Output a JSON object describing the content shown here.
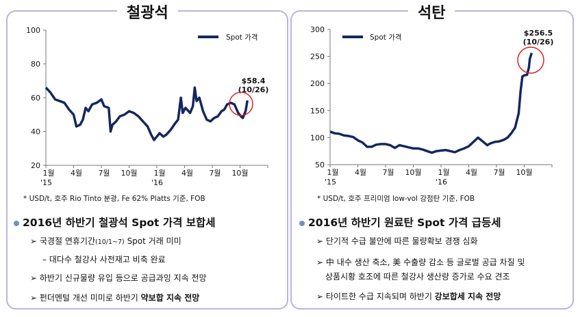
{
  "chart_data": [
    {
      "type": "line",
      "title": "철광석",
      "legend": "Spot 가격",
      "legend_placement": "top-right",
      "ylim": [
        20,
        100
      ],
      "yticks": [
        20,
        40,
        60,
        80,
        100
      ],
      "xlim": [
        0,
        24
      ],
      "x_unit": "months since Jan 2015",
      "xticks": [
        {
          "x": 0,
          "label": "1월",
          "year": "'15"
        },
        {
          "x": 3,
          "label": "4월"
        },
        {
          "x": 6,
          "label": "7월"
        },
        {
          "x": 9,
          "label": "10월"
        },
        {
          "x": 12,
          "label": "1월",
          "year": "'16"
        },
        {
          "x": 15,
          "label": "4월"
        },
        {
          "x": 18,
          "label": "7월"
        },
        {
          "x": 21,
          "label": "10월"
        }
      ],
      "annotation": {
        "value": "$58.4",
        "date": "(10/26)"
      },
      "note": "* USD/t, 호주 Rio Tinto 분광, Fe 62% Platts 기준, FOB",
      "series": [
        [
          0,
          66
        ],
        [
          0.5,
          63
        ],
        [
          1,
          59
        ],
        [
          1.5,
          58
        ],
        [
          2,
          57
        ],
        [
          2.5,
          53
        ],
        [
          3,
          50
        ],
        [
          3.3,
          43
        ],
        [
          3.7,
          44
        ],
        [
          4,
          47
        ],
        [
          4.3,
          54
        ],
        [
          4.6,
          52
        ],
        [
          5,
          56
        ],
        [
          5.5,
          57
        ],
        [
          6,
          59
        ],
        [
          6.3,
          55
        ],
        [
          6.8,
          54
        ],
        [
          7,
          40
        ],
        [
          7.2,
          44
        ],
        [
          7.6,
          46
        ],
        [
          8,
          49
        ],
        [
          8.5,
          50
        ],
        [
          9,
          52
        ],
        [
          9.5,
          51
        ],
        [
          10,
          49
        ],
        [
          10.5,
          46
        ],
        [
          11,
          43
        ],
        [
          11.4,
          38
        ],
        [
          11.7,
          35
        ],
        [
          12,
          37
        ],
        [
          12.3,
          39
        ],
        [
          12.7,
          37
        ],
        [
          13,
          38
        ],
        [
          13.5,
          41
        ],
        [
          14,
          45
        ],
        [
          14.3,
          47
        ],
        [
          14.6,
          60
        ],
        [
          14.8,
          51
        ],
        [
          15.1,
          54
        ],
        [
          15.6,
          51
        ],
        [
          15.9,
          55
        ],
        [
          16.1,
          66
        ],
        [
          16.3,
          58
        ],
        [
          16.6,
          60
        ],
        [
          17,
          52
        ],
        [
          17.4,
          47
        ],
        [
          17.8,
          46
        ],
        [
          18.2,
          48
        ],
        [
          18.6,
          49
        ],
        [
          19,
          52
        ],
        [
          19.3,
          53
        ],
        [
          19.6,
          56
        ],
        [
          20,
          57
        ],
        [
          20.4,
          56
        ],
        [
          20.8,
          51
        ],
        [
          21.1,
          49
        ],
        [
          21.3,
          48
        ],
        [
          21.6,
          52
        ],
        [
          21.8,
          58.4
        ]
      ]
    },
    {
      "type": "line",
      "title": "석탄",
      "legend": "Spot 가격",
      "legend_placement": "top-left",
      "ylim": [
        50,
        300
      ],
      "yticks": [
        50,
        100,
        150,
        200,
        250,
        300
      ],
      "xlim": [
        0,
        24
      ],
      "x_unit": "months since Jan 2015",
      "xticks": [
        {
          "x": 0,
          "label": "1월",
          "year": "'15"
        },
        {
          "x": 3,
          "label": "4월"
        },
        {
          "x": 6,
          "label": "7월"
        },
        {
          "x": 9,
          "label": "10월"
        },
        {
          "x": 12,
          "label": "1월",
          "year": "'16"
        },
        {
          "x": 15,
          "label": "4월"
        },
        {
          "x": 18,
          "label": "7월"
        },
        {
          "x": 21,
          "label": "10월"
        }
      ],
      "annotation": {
        "value": "$256.5",
        "date": "(10/26)"
      },
      "note": "* USD/t, 호주 프리미엄 low-vol 강점탄 기준, FOB",
      "series": [
        [
          0,
          111
        ],
        [
          0.5,
          108
        ],
        [
          1,
          107
        ],
        [
          1.5,
          104
        ],
        [
          2,
          103
        ],
        [
          2.5,
          101
        ],
        [
          3,
          95
        ],
        [
          3.5,
          91
        ],
        [
          4,
          83
        ],
        [
          4.5,
          83
        ],
        [
          5,
          87
        ],
        [
          5.5,
          88
        ],
        [
          6,
          88
        ],
        [
          6.5,
          86
        ],
        [
          7,
          81
        ],
        [
          7.5,
          86
        ],
        [
          8,
          84
        ],
        [
          8.5,
          82
        ],
        [
          9,
          80
        ],
        [
          9.5,
          80
        ],
        [
          10,
          78
        ],
        [
          10.5,
          75
        ],
        [
          11,
          72
        ],
        [
          11.5,
          75
        ],
        [
          12,
          76
        ],
        [
          12.5,
          77
        ],
        [
          13,
          75
        ],
        [
          13.5,
          73
        ],
        [
          14,
          77
        ],
        [
          14.5,
          80
        ],
        [
          15,
          84
        ],
        [
          15.5,
          92
        ],
        [
          16,
          100
        ],
        [
          16.5,
          93
        ],
        [
          17,
          86
        ],
        [
          17.3,
          89
        ],
        [
          17.8,
          92
        ],
        [
          18.3,
          93
        ],
        [
          18.8,
          96
        ],
        [
          19.2,
          100
        ],
        [
          19.6,
          108
        ],
        [
          20,
          118
        ],
        [
          20.4,
          145
        ],
        [
          20.6,
          185
        ],
        [
          20.8,
          213
        ],
        [
          21,
          215
        ],
        [
          21.3,
          216
        ],
        [
          21.5,
          229
        ],
        [
          21.6,
          245
        ],
        [
          21.8,
          256.5
        ]
      ]
    }
  ],
  "colors": {
    "line": "#14275e",
    "circle": "#e02020",
    "border": "#b9b4df",
    "bullet": "#6f8fc7"
  },
  "left": {
    "headline": "2016년 하반기 철광석 Spot 가격 보합세",
    "items": [
      "국경절 연휴기간",
      "(10/1~7)",
      " Spot 거래 미미",
      "– 대다수 철강사 사전재고 비축 완료",
      "하반기 신규물량 유입 등으로 공급과잉 지속 전망",
      "펀더멘털 개선 미미로 하반기 ",
      "약보합 지속 전망"
    ]
  },
  "right": {
    "headline": "2016년 하반기 원료탄 Spot 가격 급등세",
    "items": [
      "단기적 수급 불안에 따른 물량확보 경쟁 심화",
      "中 내수 생산 축소, 美 수출량 감소 등 글로벌 공급 차질 및",
      "상품시황 호조에 따른 철강사 생산량 증가로 수요 견조",
      "타이트한 수급 지속되며 하반기 ",
      "강보합세 지속 전망"
    ]
  },
  "arrow": "➢"
}
